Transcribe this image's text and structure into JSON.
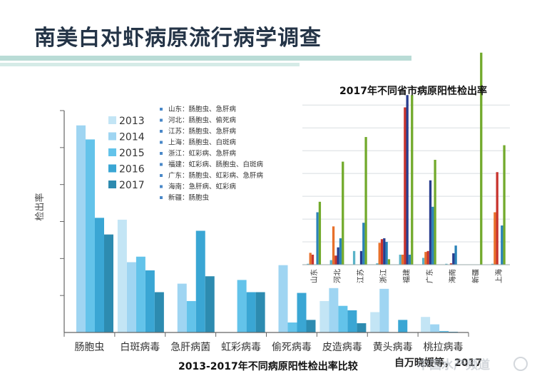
{
  "page": {
    "title": "南美白对虾病原流行病学调查",
    "source_note": "自万晓媛等，2017",
    "watermark": "中国水产频道"
  },
  "colors": {
    "title": "#243447",
    "band": "#b9dcd6",
    "bullet": "#4a88c8"
  },
  "legend_provinces": [
    "山东：肠胞虫、急肝病",
    "河北：肠胞虫、偷死病",
    "江苏：肠胞虫、急肝病",
    "上海：肠胞虫、白斑病",
    "浙江：虹彩病、急肝病",
    "福建：虹彩病、肠胞虫、白斑病",
    "广东：肠胞虫、虹彩病、急肝病",
    "海南：急肝病、虹彩病",
    "新疆：肠胞虫"
  ],
  "chart_data": [
    {
      "type": "bar",
      "title": "2013-2017年不同病原阳性检出率比较",
      "ylabel": "检出率",
      "xlabel": "",
      "categories": [
        "肠胞虫",
        "白斑病毒",
        "急肝病菌",
        "虹彩病毒",
        "偷死病毒",
        "皮造病毒",
        "黄头病毒",
        "桃拉病毒"
      ],
      "series": [
        {
          "name": "2013",
          "color": "#c3e5f5",
          "values": [
            0,
            3.05,
            0,
            0,
            0,
            0.85,
            0.55,
            0.42
          ]
        },
        {
          "name": "2014",
          "color": "#9fd5f2",
          "values": [
            5.6,
            1.9,
            1.32,
            0,
            1.82,
            1.2,
            1.18,
            0.22
          ]
        },
        {
          "name": "2015",
          "color": "#63c3ea",
          "values": [
            5.22,
            2.05,
            0.85,
            1.42,
            0.27,
            0.72,
            0,
            0.04
          ]
        },
        {
          "name": "2016",
          "color": "#3aa6d4",
          "values": [
            3.1,
            1.68,
            2.75,
            1.09,
            1.07,
            0.6,
            0.34,
            0.02
          ]
        },
        {
          "name": "2017",
          "color": "#2d8bb0",
          "values": [
            2.65,
            1.09,
            1.52,
            1.09,
            0.34,
            0.25,
            0,
            0
          ]
        }
      ],
      "ylim": [
        0,
        6
      ],
      "grid": false,
      "legend": "top-left"
    },
    {
      "type": "bar",
      "title": "2017年不同省市病原阳性检出率",
      "categories": [
        "山东",
        "河北",
        "江苏",
        "浙江",
        "福建",
        "广东",
        "海南",
        "新疆",
        "上海"
      ],
      "series": [
        {
          "name": "",
          "color": "#5ab3c8",
          "values": [
            0.2,
            1.0,
            3.0,
            0.3,
            2.2,
            1.5,
            0.2,
            0,
            0.2
          ]
        },
        {
          "name": "",
          "color": "#e8702a",
          "values": [
            2.6,
            8.4,
            0,
            4.8,
            2.2,
            2.8,
            0,
            0,
            11.5
          ]
        },
        {
          "name": "",
          "color": "#c8342e",
          "values": [
            2.2,
            2.0,
            0,
            5.6,
            34.5,
            3.0,
            0.3,
            0,
            20.3
          ]
        },
        {
          "name": "",
          "color": "#283d8e",
          "values": [
            0,
            3.8,
            3.0,
            5.8,
            37.2,
            18.5,
            2.5,
            0,
            0
          ]
        },
        {
          "name": "",
          "color": "#2a82b8",
          "values": [
            11.5,
            5.8,
            9.2,
            5.0,
            2.2,
            12.7,
            4.2,
            0,
            8.6
          ]
        },
        {
          "name": "",
          "color": "#72aa2c",
          "values": [
            13.8,
            22.6,
            28.0,
            1.2,
            37.2,
            23.0,
            0,
            46.5,
            26.2
          ]
        }
      ],
      "ylim": [
        0,
        46
      ],
      "grid": true,
      "legend": "none"
    }
  ]
}
